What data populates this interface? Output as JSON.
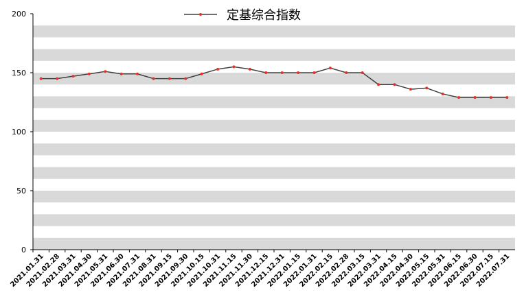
{
  "chart_data": {
    "type": "line",
    "title": "定基综合指数",
    "categories": [
      "2021.01.31",
      "2021.02.28",
      "2021.03.31",
      "2021.04.30",
      "2021.05.31",
      "2021.06.30",
      "2021.07.31",
      "2021.08.31",
      "2021.09.15",
      "2021.09.30",
      "2021.10.15",
      "2021.10.31",
      "2021.11.15",
      "2021.11.30",
      "2021.12.15",
      "2021.12.31",
      "2022.01.15",
      "2022.01.31",
      "2022.02.15",
      "2022.02.28",
      "2022.03.15",
      "2022.03.31",
      "2022.04.15",
      "2022.04.30",
      "2022.05.15",
      "2022.05.31",
      "2022.06.15",
      "2022.06.30",
      "2022.07.15",
      "2022.07.31"
    ],
    "series": [
      {
        "name": "定基综合指数",
        "color": "#404040",
        "marker_color": "#e8312a",
        "values": [
          145,
          145,
          147,
          149,
          151,
          149,
          149,
          145,
          145,
          145,
          149,
          153,
          155,
          153,
          150,
          150,
          150,
          150,
          154,
          150,
          150,
          140,
          140,
          136,
          137,
          132,
          129,
          129,
          129,
          129
        ]
      }
    ],
    "ylim": [
      0,
      200
    ],
    "yticks": [
      0,
      50,
      100,
      150,
      200
    ],
    "grid": true,
    "legend": "top"
  }
}
